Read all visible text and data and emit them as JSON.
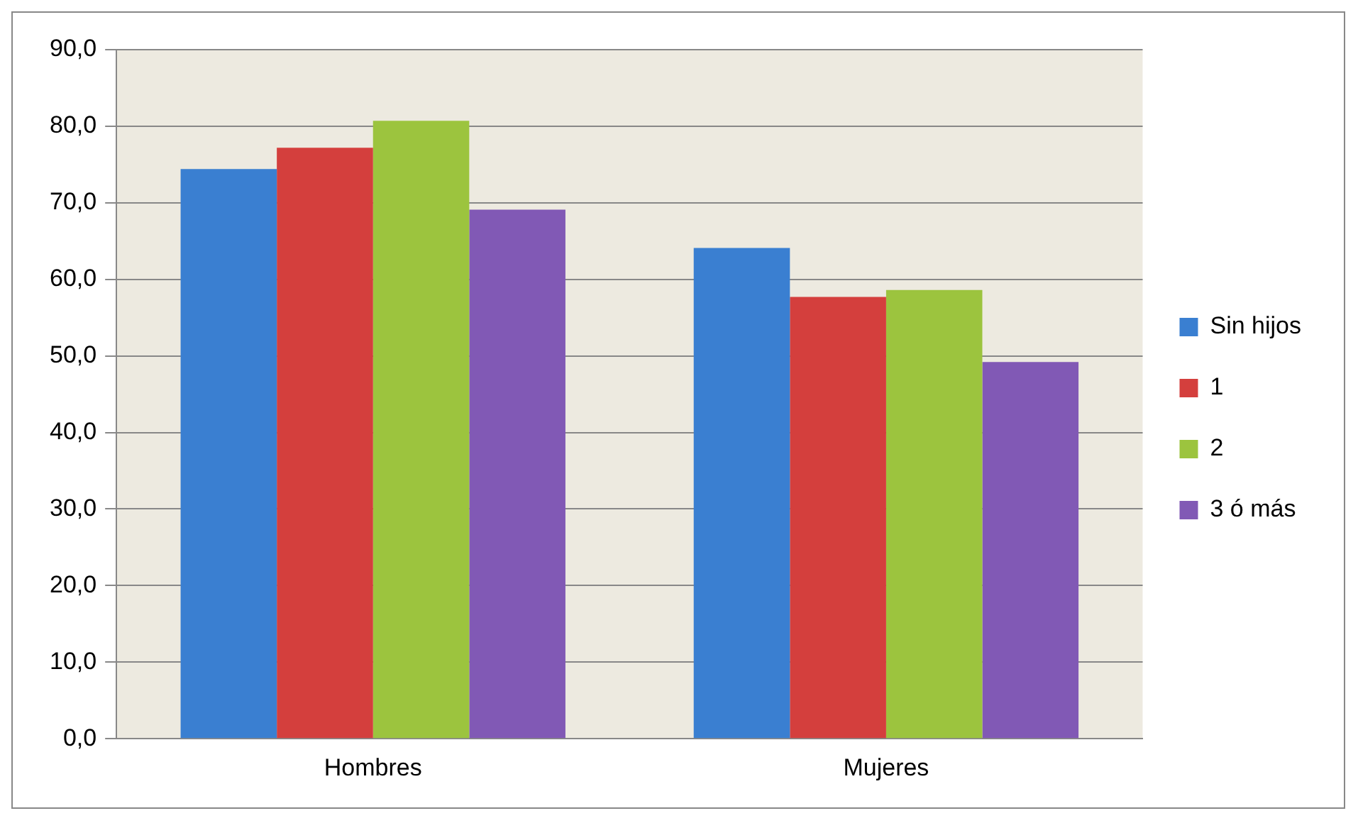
{
  "chart_data": {
    "type": "bar",
    "categories": [
      "Hombres",
      "Mujeres"
    ],
    "series": [
      {
        "name": "Sin hijos",
        "color": "#3a7fd1",
        "values": [
          74.4,
          64.1
        ]
      },
      {
        "name": "1",
        "color": "#d43f3d",
        "values": [
          77.2,
          57.7
        ]
      },
      {
        "name": "2",
        "color": "#9cc43e",
        "values": [
          80.7,
          58.6
        ]
      },
      {
        "name": "3 ó más",
        "color": "#8159b5",
        "values": [
          69.1,
          49.2
        ]
      }
    ],
    "ylim": [
      0,
      90
    ],
    "yticks": [
      {
        "value": 0,
        "label": "0,0"
      },
      {
        "value": 10,
        "label": "10,0"
      },
      {
        "value": 20,
        "label": "20,0"
      },
      {
        "value": 30,
        "label": "30,0"
      },
      {
        "value": 40,
        "label": "40,0"
      },
      {
        "value": 50,
        "label": "50,0"
      },
      {
        "value": 60,
        "label": "60,0"
      },
      {
        "value": 70,
        "label": "70,0"
      },
      {
        "value": 80,
        "label": "80,0"
      },
      {
        "value": 90,
        "label": "90,0"
      }
    ],
    "grid": "y",
    "legend": "right"
  }
}
